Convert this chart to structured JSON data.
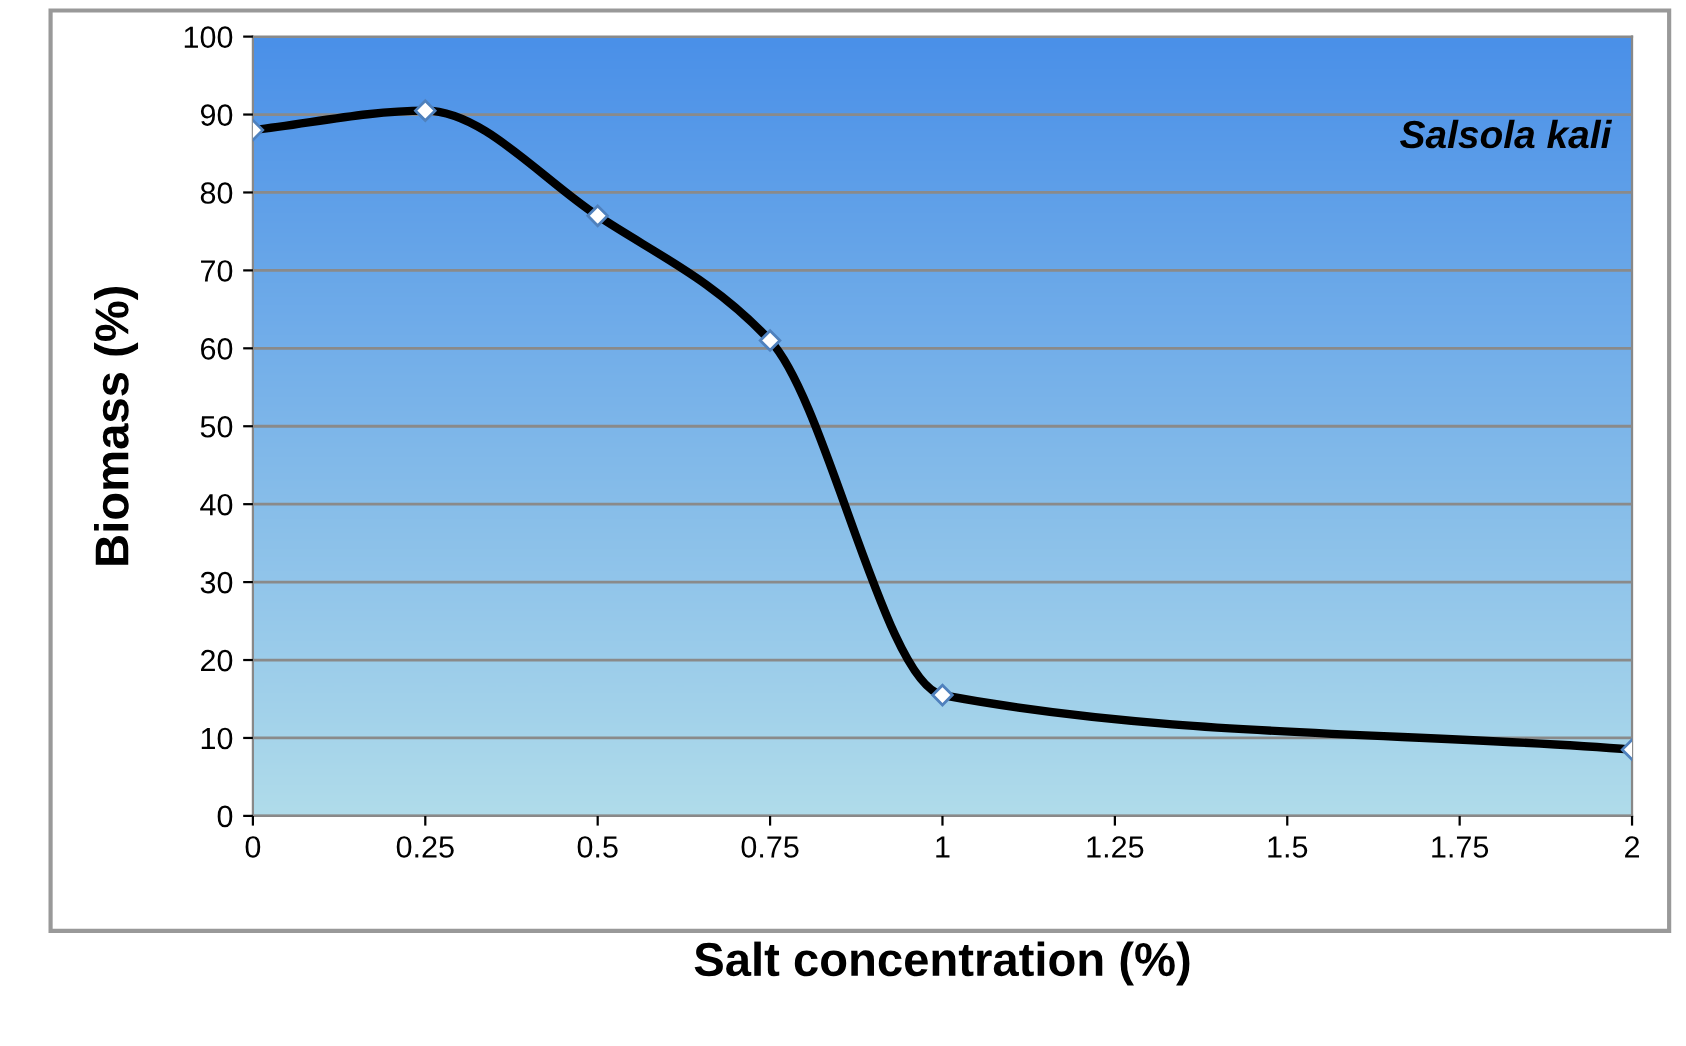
{
  "chart_data": {
    "type": "line",
    "xlabel": "Salt concentration (%)",
    "ylabel": "Biomass (%)",
    "annotations": [
      "Salsola kali"
    ],
    "x": [
      0,
      0.25,
      0.5,
      0.75,
      1,
      2
    ],
    "series": [
      {
        "color": "#000000",
        "values": [
          88,
          90.5,
          77,
          61,
          15.5,
          8.5
        ]
      }
    ],
    "xlim": [
      0,
      2
    ],
    "xticks": [
      0,
      {
        "value": 0.25,
        "label": "0.25"
      },
      {
        "value": 0.5,
        "label": "0.5"
      },
      {
        "value": 0.75,
        "label": "0.75"
      },
      1,
      {
        "value": 1.25,
        "label": "1.25"
      },
      {
        "value": 1.5,
        "label": "1.5"
      },
      {
        "value": 1.75,
        "label": "1.75"
      },
      2
    ],
    "ylim": [
      0,
      100
    ],
    "yticks": [
      0,
      10,
      20,
      30,
      40,
      50,
      60,
      70,
      80,
      90,
      100
    ],
    "grid": "y",
    "marker": "diamond",
    "line_style": "solid"
  }
}
